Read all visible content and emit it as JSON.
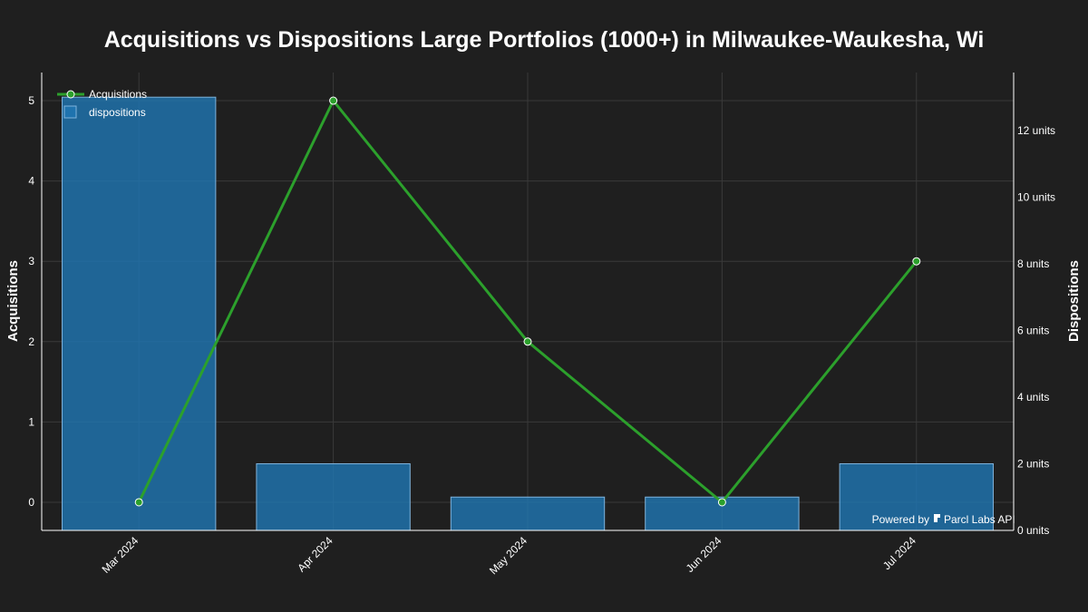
{
  "chart_data": {
    "type": "bar+line",
    "title": "Acquisitions vs Dispositions Large Portfolios (1000+) in Milwaukee-Waukesha, Wi",
    "categories": [
      "Mar 2024",
      "Apr 2024",
      "May 2024",
      "Jun 2024",
      "Jul 2024"
    ],
    "series": [
      {
        "name": "Acquisitions",
        "type": "line",
        "axis": "left",
        "values": [
          0,
          5,
          2,
          0,
          3
        ],
        "color": "#2ca02c"
      },
      {
        "name": "dispositions",
        "type": "bar",
        "axis": "right",
        "values": [
          13,
          2,
          1,
          1,
          2
        ],
        "color": "#1f77b4"
      }
    ],
    "y_left": {
      "label": "Acquisitions",
      "ticks": [
        "0",
        "1",
        "2",
        "3",
        "4",
        "5"
      ],
      "range": [
        -0.35,
        5.35
      ]
    },
    "y_right": {
      "label": "Dispositions",
      "ticks": [
        "0 units",
        "2 units",
        "4 units",
        "6 units",
        "8 units",
        "10 units",
        "12 units"
      ],
      "range": [
        0,
        13.74
      ]
    },
    "grid": true,
    "legend_position": "top-left",
    "watermark": {
      "prefix": "Powered by",
      "brand": "Parcl Labs API"
    }
  }
}
